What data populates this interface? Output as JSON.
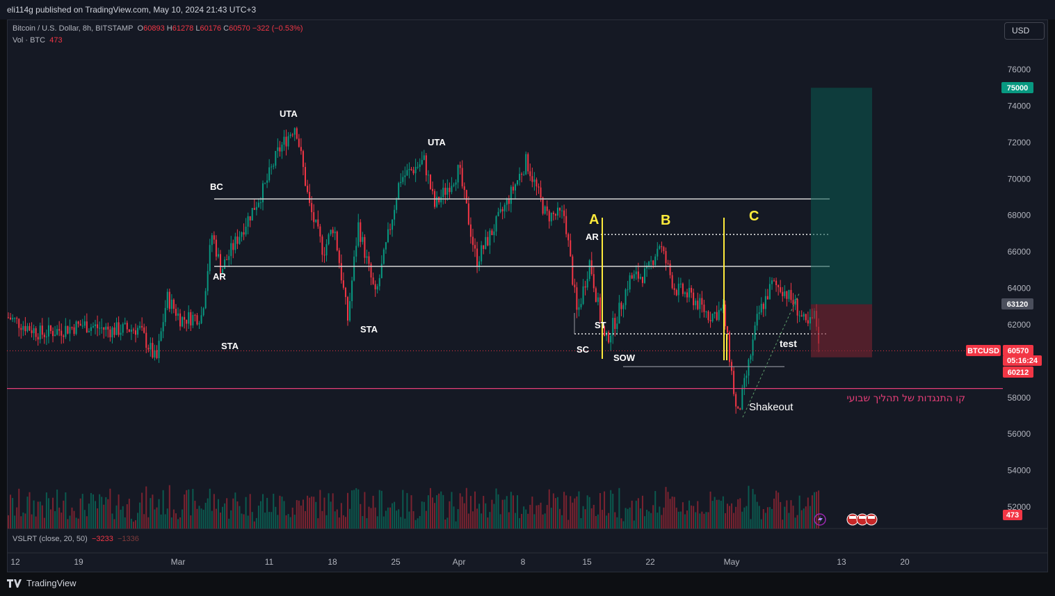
{
  "header": {
    "publisher": "eli114g published on TradingView.com, May 10, 2024 21:43 UTC+3",
    "symbol_line": "Bitcoin / U.S. Dollar, 8h, BITSTAMP",
    "o_label": "O",
    "o_value": "60893",
    "h_label": "H",
    "h_value": "61278",
    "l_label": "L",
    "l_value": "60176",
    "c_label": "C",
    "c_value": "60570",
    "change": "−322 (−0.53%)",
    "vol_label": "Vol · BTC",
    "vol_value": "473",
    "indicator_label": "VSLRT (close, 20, 50)",
    "indicator_v1": "−3233",
    "indicator_v2": "−1336",
    "currency_button": "USD"
  },
  "branding": {
    "logo_text": "TradingView"
  },
  "colors": {
    "up": "#089981",
    "down": "#f23645",
    "resist": "#e63e78",
    "yellow": "#ffeb3b",
    "bg": "#151924"
  },
  "chart_data": {
    "type": "candlestick",
    "symbol": "BTCUSD",
    "timeframe": "8h",
    "y_axis": {
      "ticks": [
        "76000",
        "74000",
        "72000",
        "70000",
        "68000",
        "66000",
        "64000",
        "62000",
        "60000",
        "58000",
        "56000",
        "54000",
        "52000"
      ],
      "range": [
        51000,
        77500
      ]
    },
    "x_axis": {
      "ticks": [
        "12",
        "19",
        "Mar",
        "11",
        "18",
        "25",
        "Apr",
        "8",
        "15",
        "22",
        "May",
        "13",
        "20"
      ]
    },
    "price_tags": {
      "target": "75000",
      "entry": "63120",
      "symbol": "BTCUSD",
      "last": "60570",
      "countdown": "05:16:24",
      "stop": "60212",
      "volume": "473"
    },
    "levels": [
      {
        "name": "range-top",
        "price": 68900
      },
      {
        "name": "range-mid",
        "price": 65200
      },
      {
        "name": "ar-line",
        "price": 66950
      },
      {
        "name": "st-line",
        "price": 61500
      },
      {
        "name": "sow-line",
        "price": 59700
      },
      {
        "name": "resistance-weekly",
        "price": 58500
      }
    ],
    "annotations": {
      "bc": "BC",
      "ar_left": "AR",
      "sta_left": "STA",
      "uta_1": "UTA",
      "uta_2": "UTA",
      "sta_mid": "STA",
      "sc": "SC",
      "ar": "AR",
      "st": "ST",
      "sow": "SOW",
      "shakeout": "Shakeout",
      "test": "test",
      "phase_a": "A",
      "phase_b": "B",
      "phase_c": "C",
      "resistance_note": "קו התנגדות של תהליך שבועי"
    },
    "position": {
      "target": 75000,
      "entry": 63120,
      "stop": 60212
    }
  }
}
